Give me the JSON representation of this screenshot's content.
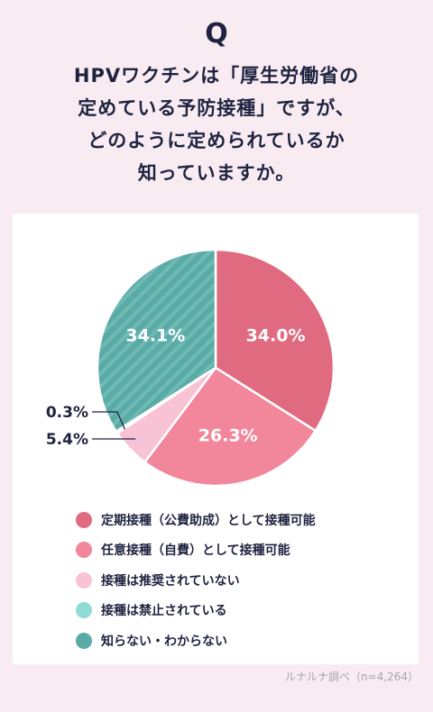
{
  "question_mark": "Q",
  "question_lines": [
    "HPVワクチンは「厚生労働省の",
    "定めている予防接種」ですが、",
    "どのように定められているか",
    "知っていますか。"
  ],
  "source": "ルナルナ調べ（n=4,264）",
  "chart_data": {
    "type": "pie",
    "title": "",
    "start": "12 o'clock, clockwise",
    "slices": [
      {
        "label": "定期接種（公費助成）として接種可能",
        "value": 34.0,
        "value_label": "34.0%",
        "color": "#e06b80",
        "pattern": "solid"
      },
      {
        "label": "任意接種（自費）として接種可能",
        "value": 26.3,
        "value_label": "26.3%",
        "color": "#f2879b",
        "pattern": "solid"
      },
      {
        "label": "接種は推奨されていない",
        "value": 5.4,
        "value_label": "5.4%",
        "color": "#f9c3d6",
        "pattern": "solid"
      },
      {
        "label": "接種は禁止されている",
        "value": 0.3,
        "value_label": "0.3%",
        "color": "#8fdcd6",
        "pattern": "solid"
      },
      {
        "label": "知らない・わからない",
        "value": 34.1,
        "value_label": "34.1%",
        "color": "#5aaba6",
        "pattern": "diagonal-stripes"
      }
    ]
  }
}
